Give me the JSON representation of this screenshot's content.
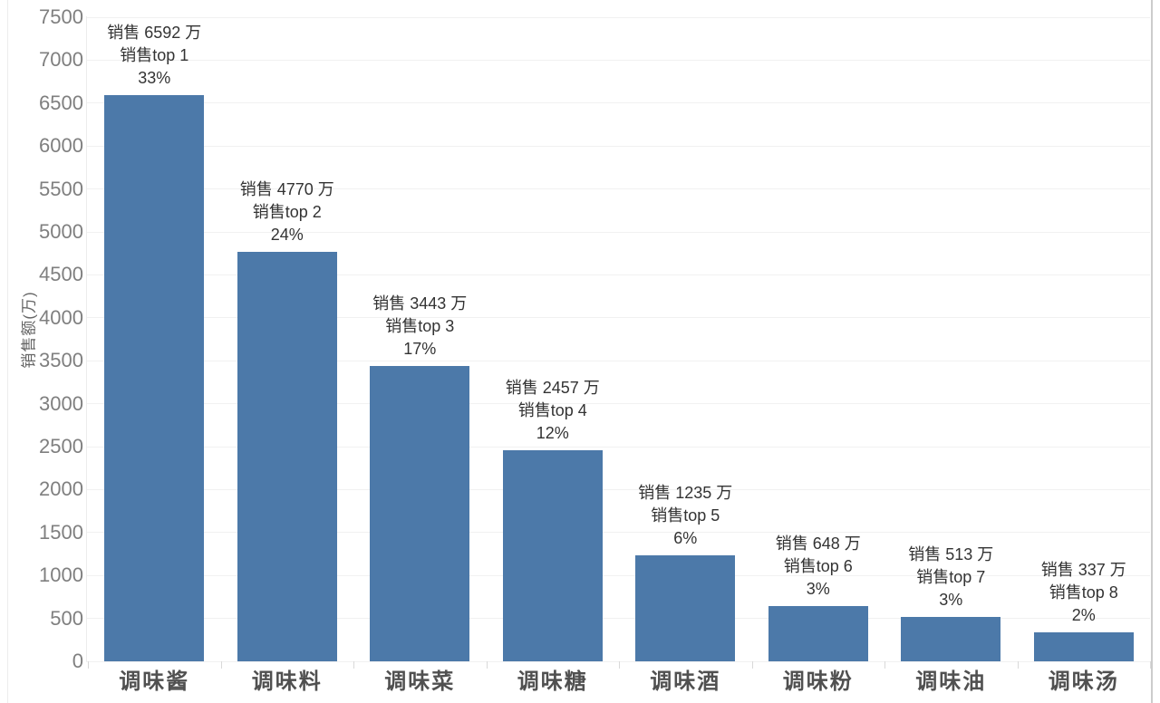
{
  "chart_data": {
    "type": "bar",
    "title": "",
    "xlabel": "",
    "ylabel": "销售额(万)",
    "categories": [
      "调味酱",
      "调味料",
      "调味菜",
      "调味糖",
      "调味酒",
      "调味粉",
      "调味油",
      "调味汤"
    ],
    "values": [
      6592,
      4770,
      3443,
      2457,
      1235,
      648,
      513,
      337
    ],
    "ranks": [
      1,
      2,
      3,
      4,
      5,
      6,
      7,
      8
    ],
    "percentages": [
      "33%",
      "24%",
      "17%",
      "12%",
      "6%",
      "3%",
      "3%",
      "2%"
    ],
    "bar_labels": [
      [
        "销售 6592 万",
        "销售top 1",
        "33%"
      ],
      [
        "销售 4770 万",
        "销售top 2",
        "24%"
      ],
      [
        "销售 3443 万",
        "销售top 3",
        "17%"
      ],
      [
        "销售 2457 万",
        "销售top 4",
        "12%"
      ],
      [
        "销售 1235 万",
        "销售top 5",
        "6%"
      ],
      [
        "销售 648 万",
        "销售top 6",
        "3%"
      ],
      [
        "销售 513 万",
        "销售top 7",
        "3%"
      ],
      [
        "销售 337 万",
        "销售top 8",
        "2%"
      ]
    ],
    "y_ticks": [
      0,
      500,
      1000,
      1500,
      2000,
      2500,
      3000,
      3500,
      4000,
      4500,
      5000,
      5500,
      6000,
      6500,
      7000,
      7500
    ],
    "ylim": [
      0,
      7500
    ],
    "grid": true,
    "legend_position": "none",
    "colors": {
      "bar": "#4C79A9",
      "grid": "#f1f1f1",
      "axis_line": "#ececec",
      "tick_mark": "#d9d9d9",
      "tick_text": "#7f7f7f",
      "annotation_text": "#333333",
      "category_text": "#505050",
      "background": "#ffffff"
    }
  }
}
